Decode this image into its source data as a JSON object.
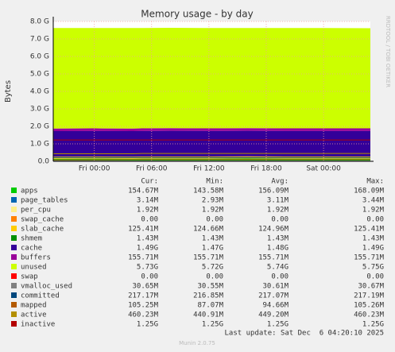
{
  "chart_data": {
    "type": "area",
    "title": "Memory usage - by day",
    "y_label": "Bytes",
    "side_text": "RRDTOOL / TOBI OETIKER",
    "x": [
      -4.3,
      0,
      4,
      5,
      8,
      12,
      16,
      20,
      24,
      28.9
    ],
    "xlim": [
      -4.3,
      28.9
    ],
    "xticks": [
      {
        "value": 0,
        "label": "Fri 00:00"
      },
      {
        "value": 6,
        "label": "Fri 06:00"
      },
      {
        "value": 12,
        "label": "Fri 12:00"
      },
      {
        "value": 18,
        "label": "Fri 18:00"
      },
      {
        "value": 24,
        "label": "Sat 00:00"
      }
    ],
    "ylim": [
      0,
      8
    ],
    "yticks": [
      {
        "value": 0,
        "label": "0.0"
      },
      {
        "value": 1,
        "label": "1.0 G"
      },
      {
        "value": 2,
        "label": "2.0 G"
      },
      {
        "value": 3,
        "label": "3.0 G"
      },
      {
        "value": 4,
        "label": "4.0 G"
      },
      {
        "value": 5,
        "label": "5.0 G"
      },
      {
        "value": 6,
        "label": "6.0 G"
      },
      {
        "value": 7,
        "label": "7.0 G"
      },
      {
        "value": 8,
        "label": "8.0 G"
      }
    ],
    "grid": true,
    "columns": [
      "Cur:",
      "Min:",
      "Avg:",
      "Max:"
    ],
    "series": [
      {
        "name": "apps",
        "color": "#00cc00",
        "style": "area",
        "values": [
          0.14,
          0.15,
          0.14,
          0.15,
          0.15,
          0.15,
          0.16,
          0.15,
          0.15,
          0.15
        ],
        "stats": [
          "154.67M",
          "143.58M",
          "156.09M",
          "168.09M"
        ]
      },
      {
        "name": "page_tables",
        "color": "#0066b3",
        "style": "area",
        "values": [
          0.003,
          0.003,
          0.003,
          0.003,
          0.003,
          0.003,
          0.003,
          0.003,
          0.003,
          0.003
        ],
        "stats": [
          "3.14M",
          "2.93M",
          "3.11M",
          "3.44M"
        ]
      },
      {
        "name": "per_cpu",
        "color": "#ffee88",
        "style": "area",
        "values": [
          0.002,
          0.002,
          0.002,
          0.002,
          0.002,
          0.002,
          0.002,
          0.002,
          0.002,
          0.002
        ],
        "stats": [
          "1.92M",
          "1.92M",
          "1.92M",
          "1.92M"
        ]
      },
      {
        "name": "swap_cache",
        "color": "#ff8000",
        "style": "area",
        "values": [
          0,
          0,
          0,
          0,
          0,
          0,
          0,
          0,
          0,
          0
        ],
        "stats": [
          "0.00",
          "0.00",
          "0.00",
          "0.00"
        ]
      },
      {
        "name": "slab_cache",
        "color": "#ffcc00",
        "style": "area",
        "values": [
          0.12,
          0.12,
          0.12,
          0.12,
          0.12,
          0.12,
          0.12,
          0.12,
          0.12,
          0.12
        ],
        "stats": [
          "125.41M",
          "124.66M",
          "124.96M",
          "125.41M"
        ]
      },
      {
        "name": "shmem",
        "color": "#008f00",
        "style": "line",
        "values": [
          0.0014,
          0.0014,
          0.0014,
          0.0014,
          0.0014,
          0.0014,
          0.0014,
          0.0014,
          0.0014,
          0.0014
        ],
        "stats": [
          "1.43M",
          "1.43M",
          "1.43M",
          "1.43M"
        ]
      },
      {
        "name": "cache",
        "color": "#330099",
        "style": "area",
        "values": [
          1.46,
          1.46,
          1.46,
          1.46,
          1.47,
          1.46,
          1.46,
          1.46,
          1.46,
          1.46
        ],
        "stats": [
          "1.49G",
          "1.47G",
          "1.48G",
          "1.49G"
        ]
      },
      {
        "name": "buffers",
        "color": "#990099",
        "style": "area",
        "values": [
          0.15,
          0.15,
          0.15,
          0.15,
          0.15,
          0.15,
          0.15,
          0.15,
          0.15,
          0.15
        ],
        "stats": [
          "155.71M",
          "155.71M",
          "155.71M",
          "155.71M"
        ]
      },
      {
        "name": "unused",
        "color": "#ccff00",
        "style": "area",
        "values": [
          5.75,
          5.74,
          5.75,
          5.74,
          5.74,
          5.74,
          5.73,
          5.74,
          5.74,
          5.73
        ],
        "stats": [
          "5.73G",
          "5.72G",
          "5.74G",
          "5.75G"
        ]
      },
      {
        "name": "swap",
        "color": "#ff0000",
        "style": "area",
        "values": [
          0,
          0,
          0,
          0,
          0,
          0,
          0,
          0,
          0,
          0
        ],
        "stats": [
          "0.00",
          "0.00",
          "0.00",
          "0.00"
        ]
      },
      {
        "name": "vmalloc_used",
        "color": "#808080",
        "style": "line",
        "values": [
          0.03,
          0.03,
          0.03,
          0.03,
          0.03,
          0.03,
          0.03,
          0.03,
          0.03,
          0.03
        ],
        "stats": [
          "30.65M",
          "30.55M",
          "30.61M",
          "30.67M"
        ]
      },
      {
        "name": "committed",
        "color": "#00487d",
        "style": "line",
        "values": [
          0.21,
          0.21,
          0.21,
          0.21,
          0.21,
          0.21,
          0.21,
          0.21,
          0.21,
          0.21
        ],
        "stats": [
          "217.17M",
          "216.85M",
          "217.07M",
          "217.19M"
        ]
      },
      {
        "name": "mapped",
        "color": "#b35a00",
        "style": "line",
        "values": [
          0.085,
          0.09,
          0.1,
          0.1,
          0.1,
          0.1,
          0.1,
          0.1,
          0.1,
          0.103
        ],
        "stats": [
          "105.25M",
          "87.07M",
          "94.66M",
          "105.26M"
        ]
      },
      {
        "name": "active",
        "color": "#b38f00",
        "style": "line",
        "values": [
          0.43,
          0.43,
          0.43,
          0.45,
          0.45,
          0.45,
          0.45,
          0.45,
          0.45,
          0.45
        ],
        "stats": [
          "460.23M",
          "440.91M",
          "449.20M",
          "460.23M"
        ]
      },
      {
        "name": "inactive",
        "color": "#b30000",
        "style": "line",
        "values": [
          1.22,
          1.22,
          1.22,
          1.22,
          1.22,
          1.22,
          1.22,
          1.22,
          1.22,
          1.22
        ],
        "stats": [
          "1.25G",
          "1.25G",
          "1.25G",
          "1.25G"
        ]
      }
    ],
    "last_update": "Last update: Sat Dec  6 04:20:10 2025",
    "footer": "Munin 2.0.75"
  }
}
